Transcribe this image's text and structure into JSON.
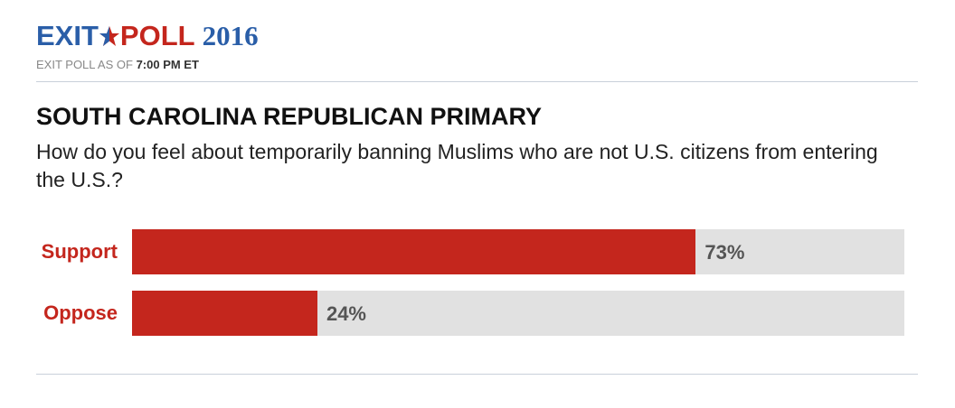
{
  "header": {
    "logo": [
      "EXIT",
      "POLL",
      "2016"
    ],
    "timestamp_prefix": "EXIT POLL AS OF",
    "timestamp": "7:00 PM ET"
  },
  "chart_data": {
    "type": "bar",
    "orientation": "horizontal",
    "title": "SOUTH CAROLINA REPUBLICAN PRIMARY",
    "subtitle": "How do you feel about temporarily banning Muslims who are not U.S. citizens from entering the U.S.?",
    "categories": [
      "Support",
      "Oppose"
    ],
    "values": [
      73,
      24
    ],
    "value_labels": [
      "73%",
      "24%"
    ],
    "color": "#c4261d",
    "track_color": "#e1e1e1",
    "xlim": [
      0,
      100
    ]
  }
}
